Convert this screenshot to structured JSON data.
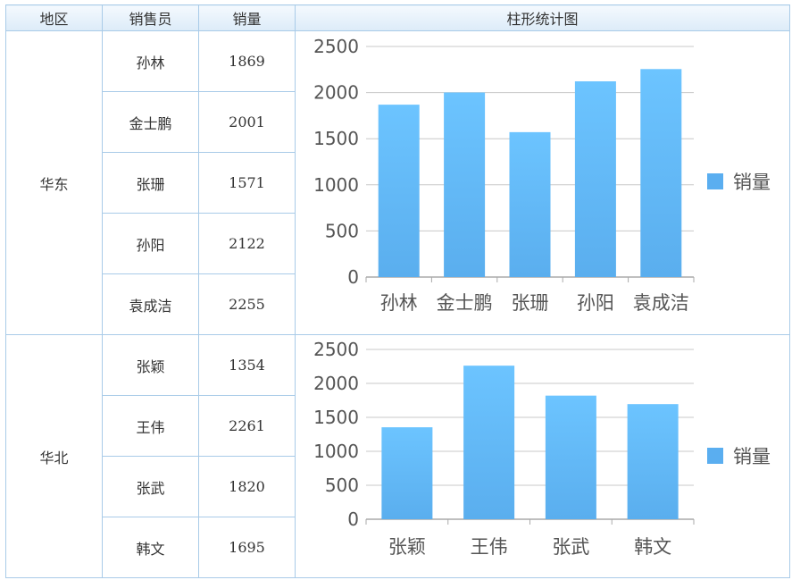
{
  "header": {
    "region": "地区",
    "salesperson": "销售员",
    "sales": "销量",
    "chart": "柱形统计图"
  },
  "groups": [
    {
      "region": "华东",
      "rows": [
        {
          "name": "孙林",
          "value": "1869"
        },
        {
          "name": "金士鹏",
          "value": "2001"
        },
        {
          "name": "张珊",
          "value": "1571"
        },
        {
          "name": "孙阳",
          "value": "2122"
        },
        {
          "name": "袁成洁",
          "value": "2255"
        }
      ]
    },
    {
      "region": "华北",
      "rows": [
        {
          "name": "张颖",
          "value": "1354"
        },
        {
          "name": "王伟",
          "value": "2261"
        },
        {
          "name": "张武",
          "value": "1820"
        },
        {
          "name": "韩文",
          "value": "1695"
        }
      ]
    }
  ],
  "chart_data": [
    {
      "type": "bar",
      "categories": [
        "孙林",
        "金士鹏",
        "张珊",
        "孙阳",
        "袁成洁"
      ],
      "series": [
        {
          "name": "销量",
          "values": [
            1869,
            2001,
            1571,
            2122,
            2255
          ]
        }
      ],
      "ylim": [
        0,
        2500
      ],
      "yticks": [
        0,
        500,
        1000,
        1500,
        2000,
        2500
      ],
      "grid": true,
      "legend": "right",
      "color": "#5aaef0"
    },
    {
      "type": "bar",
      "categories": [
        "张颖",
        "王伟",
        "张武",
        "韩文"
      ],
      "series": [
        {
          "name": "销量",
          "values": [
            1354,
            2261,
            1820,
            1695
          ]
        }
      ],
      "ylim": [
        0,
        2500
      ],
      "yticks": [
        0,
        500,
        1000,
        1500,
        2000,
        2500
      ],
      "grid": true,
      "legend": "right",
      "color": "#5aaef0"
    }
  ]
}
